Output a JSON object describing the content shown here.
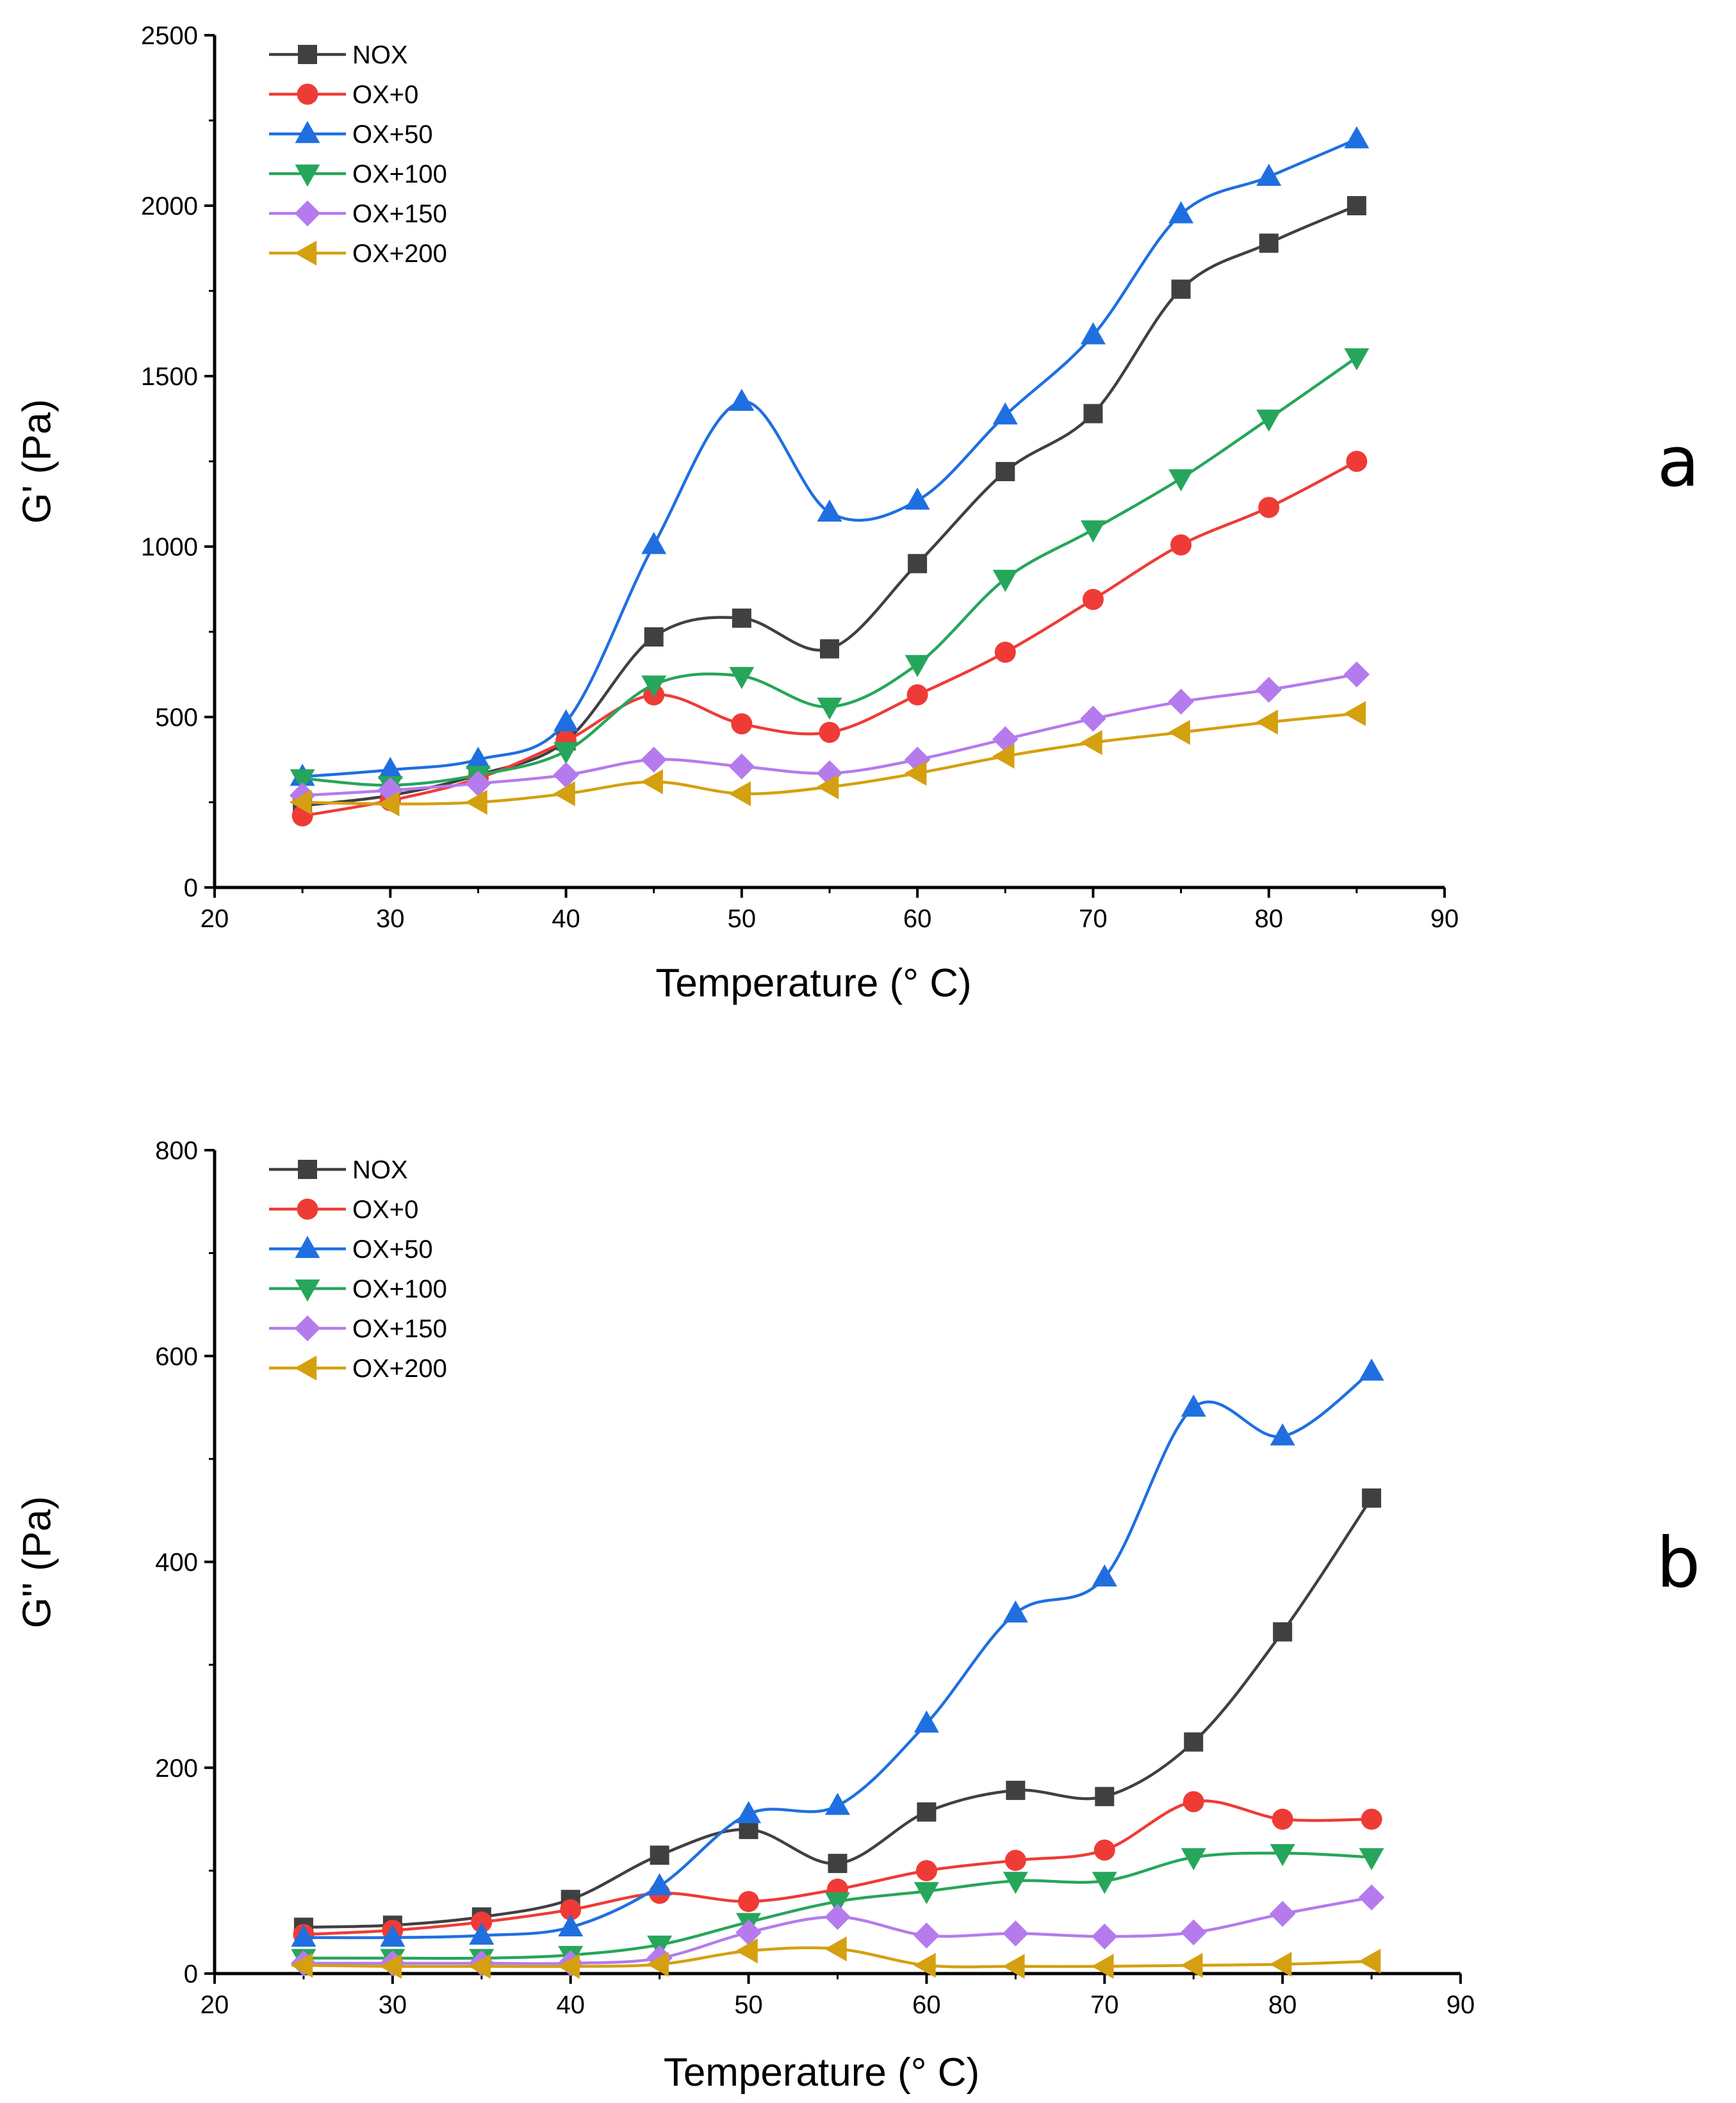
{
  "chart_data": [
    {
      "type": "line",
      "panel_label": "a",
      "title": "",
      "xlabel": "Temperature (° C)",
      "ylabel": "G' (Pa)",
      "xlim": [
        20,
        90
      ],
      "ylim": [
        0,
        2500
      ],
      "xticks": [
        20,
        30,
        40,
        50,
        60,
        70,
        80,
        90
      ],
      "yticks": [
        0,
        500,
        1000,
        1500,
        2000,
        2500
      ],
      "grid": false,
      "legend_position": "top-left",
      "x": [
        25,
        30,
        35,
        40,
        45,
        50,
        55,
        60,
        65,
        70,
        75,
        80,
        85
      ],
      "series": [
        {
          "name": "NOX",
          "color": "#404040",
          "marker": "square",
          "values": [
            240,
            270,
            330,
            430,
            735,
            790,
            700,
            950,
            1220,
            1390,
            1755,
            1890,
            2000
          ]
        },
        {
          "name": "OX+0",
          "color": "#ef3b36",
          "marker": "circle",
          "values": [
            210,
            255,
            320,
            430,
            565,
            480,
            455,
            565,
            690,
            845,
            1005,
            1115,
            1250
          ]
        },
        {
          "name": "OX+50",
          "color": "#1f6fe0",
          "marker": "triangle-up",
          "values": [
            325,
            345,
            375,
            485,
            1005,
            1425,
            1100,
            1135,
            1385,
            1620,
            1975,
            2085,
            2195
          ]
        },
        {
          "name": "OX+100",
          "color": "#26a65b",
          "marker": "triangle-down",
          "values": [
            320,
            300,
            330,
            400,
            595,
            620,
            530,
            655,
            905,
            1050,
            1200,
            1375,
            1555
          ]
        },
        {
          "name": "OX+150",
          "color": "#b57bed",
          "marker": "diamond",
          "values": [
            270,
            285,
            305,
            330,
            375,
            355,
            335,
            375,
            435,
            495,
            545,
            580,
            625
          ]
        },
        {
          "name": "OX+200",
          "color": "#d4a010",
          "marker": "triangle-left",
          "values": [
            250,
            245,
            250,
            275,
            310,
            275,
            295,
            335,
            385,
            425,
            455,
            485,
            510
          ]
        }
      ]
    },
    {
      "type": "line",
      "panel_label": "b",
      "title": "",
      "xlabel": "Temperature (° C)",
      "ylabel": "G'' (Pa)",
      "xlim": [
        20,
        90
      ],
      "ylim": [
        0,
        800
      ],
      "xticks": [
        20,
        30,
        40,
        50,
        60,
        70,
        80,
        90
      ],
      "yticks": [
        0,
        200,
        400,
        600,
        800
      ],
      "grid": false,
      "legend_position": "top-left",
      "x": [
        25,
        30,
        35,
        40,
        45,
        50,
        55,
        60,
        65,
        70,
        75,
        80,
        85
      ],
      "series": [
        {
          "name": "NOX",
          "color": "#404040",
          "marker": "square",
          "values": [
            45,
            47,
            55,
            72,
            115,
            140,
            107,
            157,
            178,
            172,
            225,
            332,
            462
          ]
        },
        {
          "name": "OX+0",
          "color": "#ef3b36",
          "marker": "circle",
          "values": [
            38,
            42,
            50,
            62,
            78,
            70,
            82,
            100,
            110,
            120,
            167,
            150,
            150
          ]
        },
        {
          "name": "OX+50",
          "color": "#1f6fe0",
          "marker": "triangle-up",
          "values": [
            35,
            35,
            37,
            45,
            85,
            155,
            163,
            243,
            350,
            385,
            550,
            522,
            585
          ]
        },
        {
          "name": "OX+100",
          "color": "#26a65b",
          "marker": "triangle-down",
          "values": [
            15,
            15,
            15,
            18,
            28,
            50,
            70,
            80,
            90,
            90,
            113,
            117,
            113
          ]
        },
        {
          "name": "OX+150",
          "color": "#b57bed",
          "marker": "diamond",
          "values": [
            10,
            10,
            10,
            10,
            15,
            40,
            55,
            37,
            39,
            36,
            40,
            58,
            74
          ]
        },
        {
          "name": "OX+200",
          "color": "#d4a010",
          "marker": "triangle-left",
          "values": [
            8,
            7,
            7,
            7,
            9,
            22,
            24,
            8,
            7,
            7,
            8,
            9,
            12
          ]
        }
      ]
    }
  ]
}
